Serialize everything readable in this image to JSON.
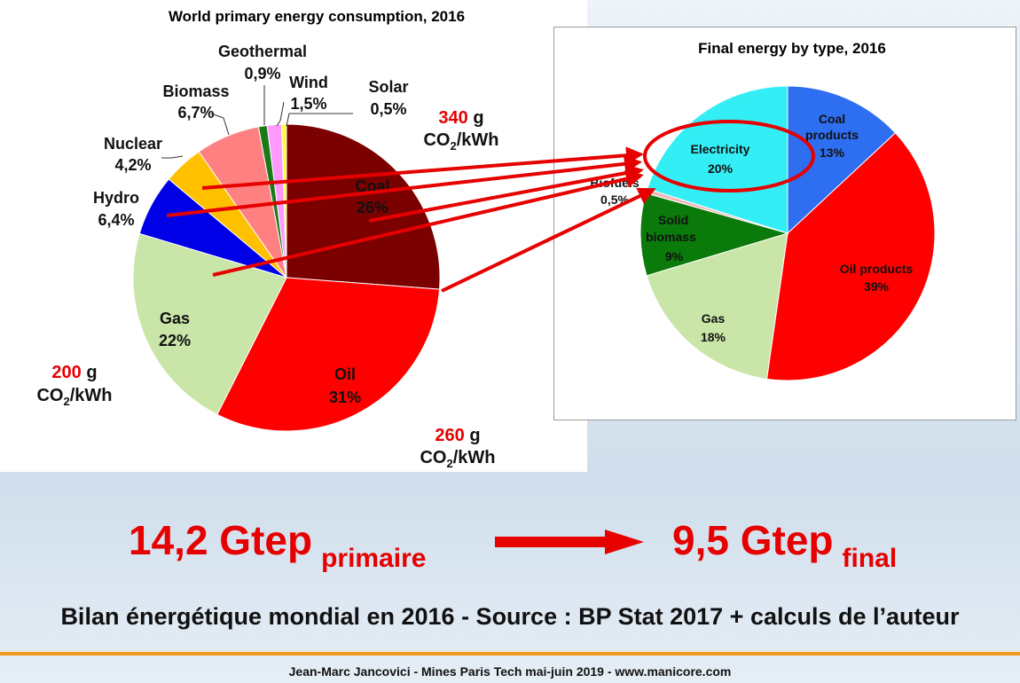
{
  "chart_data": [
    {
      "type": "pie",
      "title": "World primary energy consumption, 2016",
      "unit": "%",
      "slices": [
        {
          "label": "Coal",
          "value": 26,
          "display": "26%",
          "color": "#7b0000"
        },
        {
          "label": "Oil",
          "value": 31,
          "display": "31%",
          "color": "#ff0000"
        },
        {
          "label": "Gas",
          "value": 22,
          "display": "22%",
          "color": "#c9e6a8"
        },
        {
          "label": "Hydro",
          "value": 6.4,
          "display": "6,4%",
          "color": "#0000e6"
        },
        {
          "label": "Nuclear",
          "value": 4.2,
          "display": "4,2%",
          "color": "#ffc000"
        },
        {
          "label": "Biomass",
          "value": 6.7,
          "display": "6,7%",
          "color": "#ff8080"
        },
        {
          "label": "Geothermal",
          "value": 0.9,
          "display": "0,9%",
          "color": "#1a7a1a"
        },
        {
          "label": "Wind",
          "value": 1.5,
          "display": "1,5%",
          "color": "#ff99ff"
        },
        {
          "label": "Solar",
          "value": 0.5,
          "display": "0,5%",
          "color": "#ffff33"
        }
      ],
      "emission_annotations": [
        {
          "value": "340",
          "unit_prefix": "g",
          "unit": "CO2/kWh",
          "source": "Coal"
        },
        {
          "value": "260",
          "unit_prefix": "g",
          "unit": "CO2/kWh",
          "source": "Oil"
        },
        {
          "value": "200",
          "unit_prefix": "g",
          "unit": "CO2/kWh",
          "source": "Gas"
        }
      ]
    },
    {
      "type": "pie",
      "title": "Final energy by type, 2016",
      "unit": "%",
      "slices": [
        {
          "label": "Coal products",
          "value": 13,
          "display": "13%",
          "color": "#2e6ef0"
        },
        {
          "label": "Oil products",
          "value": 39,
          "display": "39%",
          "color": "#ff0000"
        },
        {
          "label": "Gas",
          "value": 18,
          "display": "18%",
          "color": "#c9e6a8"
        },
        {
          "label": "Solid biomass",
          "value": 9,
          "display": "9%",
          "color": "#0a7a0a"
        },
        {
          "label": "Biofuels",
          "value": 0.5,
          "display": "0,5%",
          "color": "#f2b8b8"
        },
        {
          "label": "Electricity",
          "value": 20,
          "display": "20%",
          "color": "#33eef5"
        }
      ],
      "highlight": "Electricity"
    }
  ],
  "summary": {
    "primary_value": "14,2 Gtep",
    "primary_sub": "primaire",
    "final_value": "9,5 Gtep",
    "final_sub": "final"
  },
  "subtitle": "Bilan énergétique mondial en 2016 - Source : BP Stat 2017 + calculs de l’auteur",
  "footer": "Jean-Marc Jancovici - Mines Paris Tech mai-juin 2019 - www.manicore.com",
  "colors": {
    "accent_red": "#e60000",
    "footer_rule": "#f39a1e"
  }
}
